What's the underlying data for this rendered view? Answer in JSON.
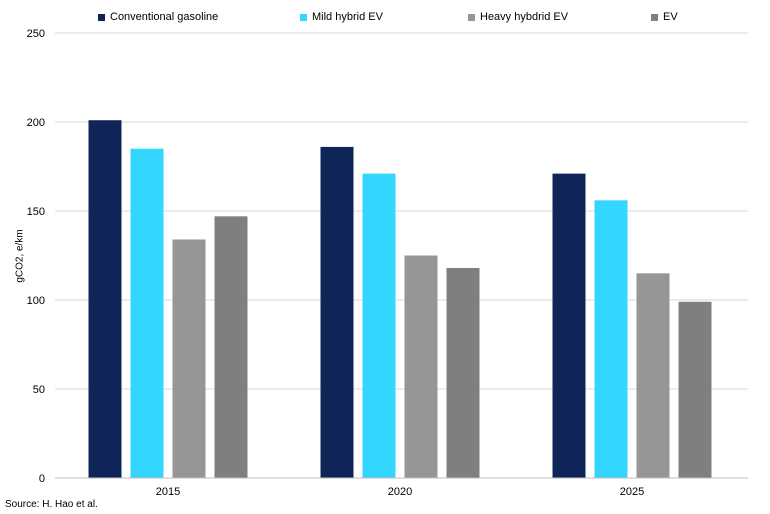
{
  "chart_data": {
    "type": "bar",
    "categories": [
      "2015",
      "2020",
      "2025"
    ],
    "series": [
      {
        "name": "Conventional gasoline",
        "color": "#0f2457",
        "values": [
          201,
          186,
          171
        ]
      },
      {
        "name": "Mild hybrid EV",
        "color": "#33d6ff",
        "values": [
          185,
          171,
          156
        ]
      },
      {
        "name": "Heavy hybdrid EV",
        "color": "#969696",
        "values": [
          134,
          125,
          115
        ]
      },
      {
        "name": "EV",
        "color": "#7f7f7f",
        "values": [
          147,
          118,
          99
        ]
      }
    ],
    "ylabel": "gCO2, e/km",
    "ylim": [
      0,
      250
    ],
    "yticks": [
      "0",
      "50",
      "100",
      "150",
      "200",
      "250"
    ],
    "grid": true,
    "legend_position": "top"
  },
  "source_text": "Source: H. Hao et al."
}
